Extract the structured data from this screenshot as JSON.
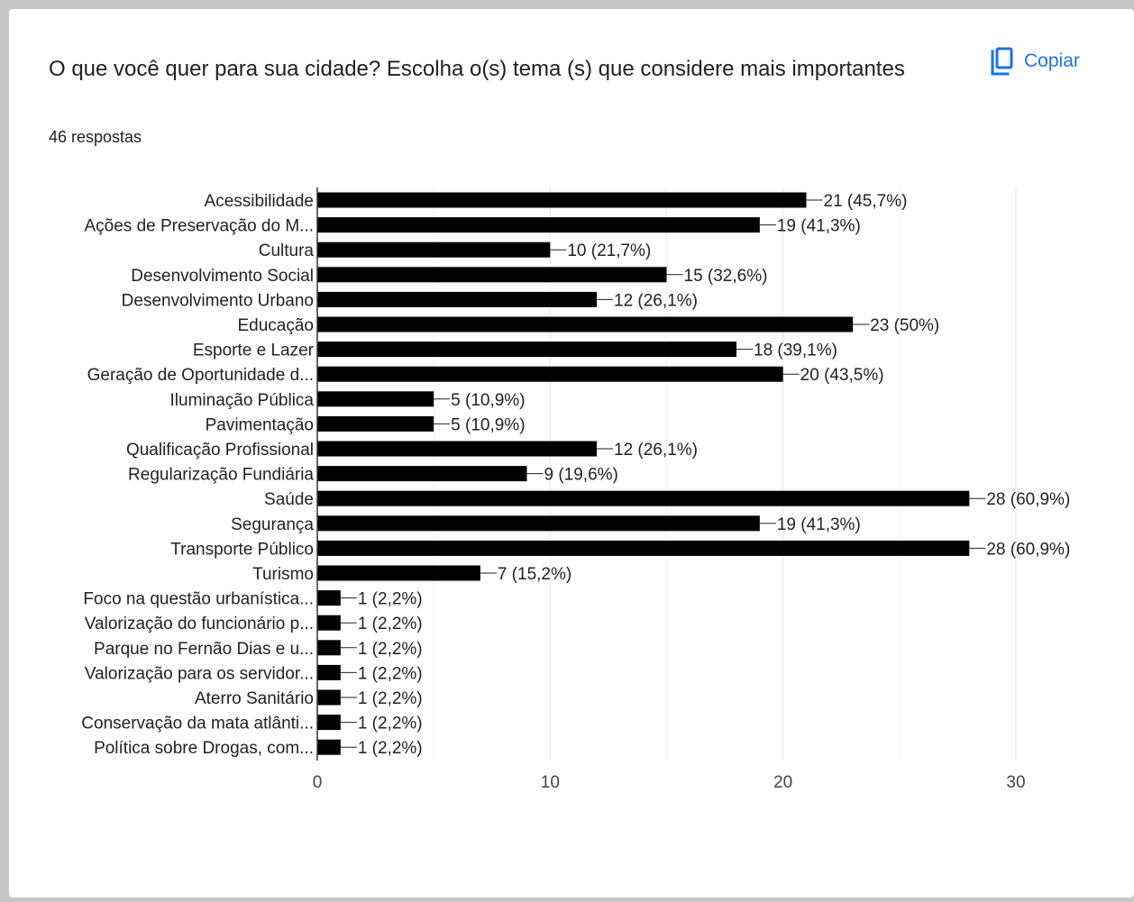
{
  "card": {
    "title": "O que você quer para sua cidade? Escolha o(s) tema (s) que considere mais importantes",
    "responses": "46 respostas",
    "copy_label": "Copiar",
    "copy_icon": "copy-icon"
  },
  "colors": {
    "bar": "#000000",
    "accent": "#1a73e8",
    "grid": "#e6e6e6",
    "background": "#ffffff",
    "frame": "#c6c6c6"
  },
  "chart_data": {
    "type": "bar",
    "orientation": "horizontal",
    "categories": [
      "Acessibilidade",
      "Ações de Preservação do M...",
      "Cultura",
      "Desenvolvimento Social",
      "Desenvolvimento Urbano",
      "Educação",
      "Esporte e Lazer",
      "Geração de Oportunidade d...",
      "Iluminação Pública",
      "Pavimentação",
      "Qualificação Profissional",
      "Regularização Fundiária",
      "Saúde",
      "Segurança",
      "Transporte Público",
      "Turismo",
      "Foco na questão urbanística...",
      "Valorização do funcionário p...",
      "Parque no Fernão Dias e u...",
      "Valorização para os servidor...",
      "Aterro Sanitário",
      "Conservação da mata atlânti...",
      "Política sobre Drogas, com..."
    ],
    "values": [
      21,
      19,
      10,
      15,
      12,
      23,
      18,
      20,
      5,
      5,
      12,
      9,
      28,
      19,
      28,
      7,
      1,
      1,
      1,
      1,
      1,
      1,
      1
    ],
    "data_labels": [
      "21 (45,7%)",
      "19 (41,3%)",
      "10 (21,7%)",
      "15 (32,6%)",
      "12 (26,1%)",
      "23 (50%)",
      "18 (39,1%)",
      "20 (43,5%)",
      "5 (10,9%)",
      "5 (10,9%)",
      "12 (26,1%)",
      "9 (19,6%)",
      "28 (60,9%)",
      "19 (41,3%)",
      "28 (60,9%)",
      "7 (15,2%)",
      "1 (2,2%)",
      "1 (2,2%)",
      "1 (2,2%)",
      "1 (2,2%)",
      "1 (2,2%)",
      "1 (2,2%)",
      "1 (2,2%)"
    ],
    "xlim": [
      0,
      30
    ],
    "x_ticks": [
      0,
      10,
      20,
      30
    ],
    "x_minor_grid": [
      5,
      15,
      25
    ],
    "grid": true,
    "legend": "none"
  }
}
